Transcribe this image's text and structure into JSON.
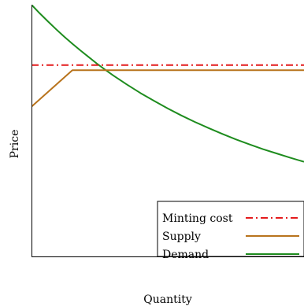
{
  "chart_data": {
    "type": "line",
    "title": "",
    "xlabel": "Quantity",
    "ylabel": "Price",
    "xlim": [
      0,
      100
    ],
    "ylim": [
      0,
      100
    ],
    "axis_ticks": false,
    "grid": false,
    "legend_position": "bottom-right",
    "series": [
      {
        "name": "Minting cost",
        "style": "dash-dot",
        "color": "#e41a1c",
        "points": [
          [
            0,
            76
          ],
          [
            100,
            76
          ]
        ]
      },
      {
        "name": "Supply",
        "style": "solid",
        "color": "#b8731c",
        "points": [
          [
            0,
            59.5
          ],
          [
            15,
            74
          ],
          [
            100,
            74
          ]
        ]
      },
      {
        "name": "Demand",
        "style": "solid",
        "color": "#1e8c1e",
        "points": [
          [
            0,
            100
          ],
          [
            3,
            96.6
          ],
          [
            6,
            93.4
          ],
          [
            9,
            90.3
          ],
          [
            12,
            87.3
          ],
          [
            15,
            84.5
          ],
          [
            18,
            81.8
          ],
          [
            21,
            79.2
          ],
          [
            24,
            76.6
          ],
          [
            27,
            74.2
          ],
          [
            30,
            71.9
          ],
          [
            35,
            68.3
          ],
          [
            40,
            64.9
          ],
          [
            45,
            61.8
          ],
          [
            50,
            58.8
          ],
          [
            55,
            56.0
          ],
          [
            60,
            53.4
          ],
          [
            65,
            51.0
          ],
          [
            70,
            48.7
          ],
          [
            75,
            46.5
          ],
          [
            80,
            44.5
          ],
          [
            85,
            42.6
          ],
          [
            90,
            40.9
          ],
          [
            95,
            39.2
          ],
          [
            100,
            37.6
          ]
        ]
      }
    ]
  }
}
